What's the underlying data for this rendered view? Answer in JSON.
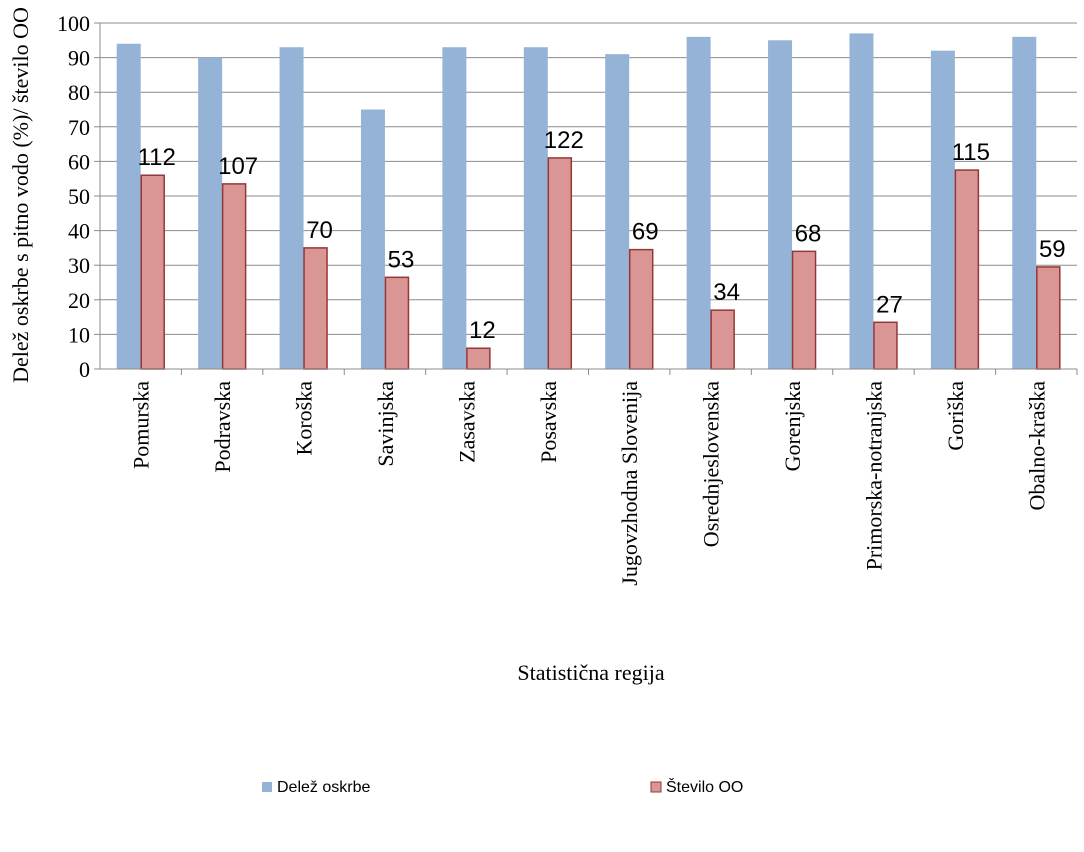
{
  "chart_data": {
    "type": "bar",
    "ylabel": "Delež oskrbe s pitno vodo (%)/ število OO",
    "xlabel": "Statistična regija",
    "ylim": [
      0,
      100
    ],
    "yticks": [
      "0",
      "10",
      "20",
      "30",
      "40",
      "50",
      "60",
      "70",
      "80",
      "90",
      "100"
    ],
    "grid": true,
    "legend_position": "bottom",
    "categories": [
      "Pomurska",
      "Podravska",
      "Koroška",
      "Savinjska",
      "Zasavska",
      "Posavska",
      "Jugovzhodna Slovenija",
      "Osrednjeslovenska",
      "Gorenjska",
      "Primorska-notranjska",
      "Goriška",
      "Obalno-kraška"
    ],
    "series": [
      {
        "name": "Delež oskrbe",
        "color": "#95b3d7",
        "values": [
          94,
          90,
          93,
          75,
          93,
          93,
          91,
          96,
          95,
          97,
          92,
          96
        ]
      },
      {
        "name": "Število OO",
        "color": "#d99694",
        "border": "#953735",
        "values": [
          112,
          107,
          70,
          53,
          12,
          122,
          69,
          34,
          68,
          27,
          115,
          59
        ],
        "plotted_values": [
          56,
          53.5,
          35,
          26.5,
          6,
          61,
          34.5,
          17,
          34,
          13.5,
          57.5,
          29.5
        ],
        "data_labels": [
          "112",
          "107",
          "70",
          "53",
          "12",
          "122",
          "69",
          "34",
          "68",
          "27",
          "115",
          "59"
        ]
      }
    ]
  }
}
